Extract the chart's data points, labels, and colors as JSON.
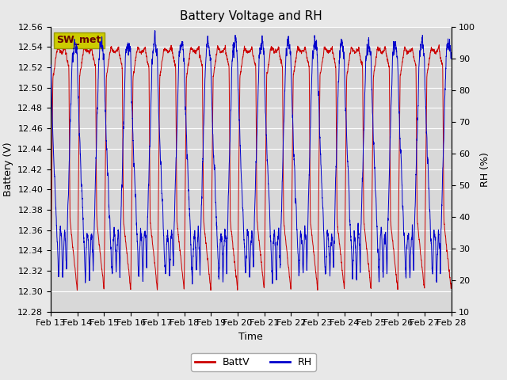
{
  "title": "Battery Voltage and RH",
  "xlabel": "Time",
  "ylabel_left": "Battery (V)",
  "ylabel_right": "RH (%)",
  "station_label": "SW_met",
  "x_tick_labels": [
    "Feb 13",
    "Feb 14",
    "Feb 15",
    "Feb 16",
    "Feb 17",
    "Feb 18",
    "Feb 19",
    "Feb 20",
    "Feb 21",
    "Feb 22",
    "Feb 23",
    "Feb 24",
    "Feb 25",
    "Feb 26",
    "Feb 27",
    "Feb 28"
  ],
  "ylim_left": [
    12.28,
    12.56
  ],
  "ylim_right": [
    10,
    100
  ],
  "yticks_left": [
    12.28,
    12.3,
    12.32,
    12.34,
    12.36,
    12.38,
    12.4,
    12.42,
    12.44,
    12.46,
    12.48,
    12.5,
    12.52,
    12.54,
    12.56
  ],
  "yticks_right": [
    10,
    20,
    30,
    40,
    50,
    60,
    70,
    80,
    90,
    100
  ],
  "batt_color": "#cc0000",
  "rh_color": "#0000cc",
  "legend_batt": "BattV",
  "legend_rh": "RH",
  "fig_bg_color": "#e8e8e8",
  "plot_bg_color": "#d8d8d8",
  "grid_color": "#ffffff",
  "station_box_facecolor": "#cccc00",
  "station_box_edgecolor": "#999900",
  "station_text_color": "#660000",
  "title_fontsize": 11,
  "axis_label_fontsize": 9,
  "tick_fontsize": 8,
  "legend_fontsize": 9,
  "n_days": 15,
  "pts_per_day": 288
}
